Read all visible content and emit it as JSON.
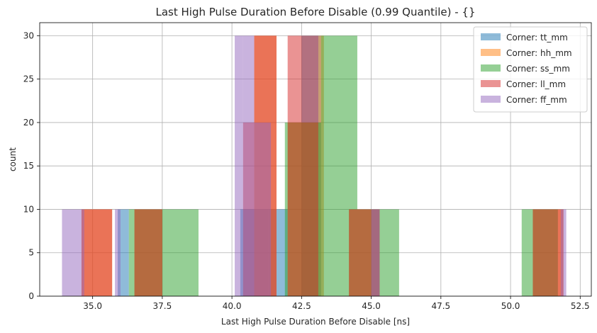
{
  "chart_data": {
    "type": "bar",
    "title": "Last High Pulse Duration Before Disable (0.99 Quantile) - {}",
    "xlabel": "Last High Pulse Duration Before Disable [ns]",
    "ylabel": "count",
    "xlim": [
      33.1,
      52.9
    ],
    "ylim": [
      0,
      31.5
    ],
    "xticks": [
      35.0,
      37.5,
      40.0,
      42.5,
      45.0,
      47.5,
      50.0,
      52.5
    ],
    "xtick_labels": [
      "35.0",
      "37.5",
      "40.0",
      "42.5",
      "45.0",
      "47.5",
      "50.0",
      "52.5"
    ],
    "yticks": [
      0,
      5,
      10,
      15,
      20,
      25,
      30
    ],
    "ytick_labels": [
      "0",
      "5",
      "10",
      "15",
      "20",
      "25",
      "30"
    ],
    "grid": true,
    "legend_position": "top-right",
    "series": [
      {
        "name": "Corner: tt_mm",
        "color": "#1f77b4",
        "bins": [
          {
            "x0": 35.9,
            "x1": 36.3,
            "count": 10
          },
          {
            "x0": 40.3,
            "x1": 41.3,
            "count": 10
          },
          {
            "x0": 41.3,
            "x1": 42.0,
            "count": 10
          },
          {
            "x0": 42.5,
            "x1": 43.2,
            "count": 30
          }
        ]
      },
      {
        "name": "Corner: hh_mm",
        "color": "#ff7f0e",
        "bins": [
          {
            "x0": 34.6,
            "x1": 35.7,
            "count": 10
          },
          {
            "x0": 36.5,
            "x1": 37.5,
            "count": 10
          },
          {
            "x0": 40.8,
            "x1": 41.6,
            "count": 30
          },
          {
            "x0": 42.0,
            "x1": 43.1,
            "count": 20
          },
          {
            "x0": 43.1,
            "x1": 43.3,
            "count": 30
          },
          {
            "x0": 44.2,
            "x1": 45.3,
            "count": 10
          },
          {
            "x0": 50.8,
            "x1": 51.9,
            "count": 10
          }
        ]
      },
      {
        "name": "Corner: ss_mm",
        "color": "#2ca02c",
        "bins": [
          {
            "x0": 36.3,
            "x1": 37.5,
            "count": 10
          },
          {
            "x0": 37.5,
            "x1": 38.8,
            "count": 10
          },
          {
            "x0": 41.9,
            "x1": 43.2,
            "count": 20
          },
          {
            "x0": 43.2,
            "x1": 44.5,
            "count": 30
          },
          {
            "x0": 44.5,
            "x1": 46.0,
            "count": 10
          },
          {
            "x0": 50.4,
            "x1": 51.7,
            "count": 10
          }
        ]
      },
      {
        "name": "Corner: ll_mm",
        "color": "#d62728",
        "bins": [
          {
            "x0": 34.6,
            "x1": 35.7,
            "count": 10
          },
          {
            "x0": 36.5,
            "x1": 37.5,
            "count": 10
          },
          {
            "x0": 40.4,
            "x1": 40.8,
            "count": 20
          },
          {
            "x0": 40.8,
            "x1": 41.6,
            "count": 30
          },
          {
            "x0": 42.0,
            "x1": 43.1,
            "count": 30
          },
          {
            "x0": 44.2,
            "x1": 45.3,
            "count": 10
          },
          {
            "x0": 50.8,
            "x1": 51.9,
            "count": 10
          }
        ]
      },
      {
        "name": "Corner: ff_mm",
        "color": "#9467bd",
        "bins": [
          {
            "x0": 33.9,
            "x1": 34.7,
            "count": 10
          },
          {
            "x0": 35.8,
            "x1": 36.0,
            "count": 10
          },
          {
            "x0": 40.1,
            "x1": 40.4,
            "count": 30
          },
          {
            "x0": 40.4,
            "x1": 40.8,
            "count": 30
          },
          {
            "x0": 40.8,
            "x1": 41.4,
            "count": 20
          },
          {
            "x0": 45.0,
            "x1": 45.3,
            "count": 10
          },
          {
            "x0": 51.8,
            "x1": 52.0,
            "count": 10
          }
        ]
      }
    ]
  }
}
